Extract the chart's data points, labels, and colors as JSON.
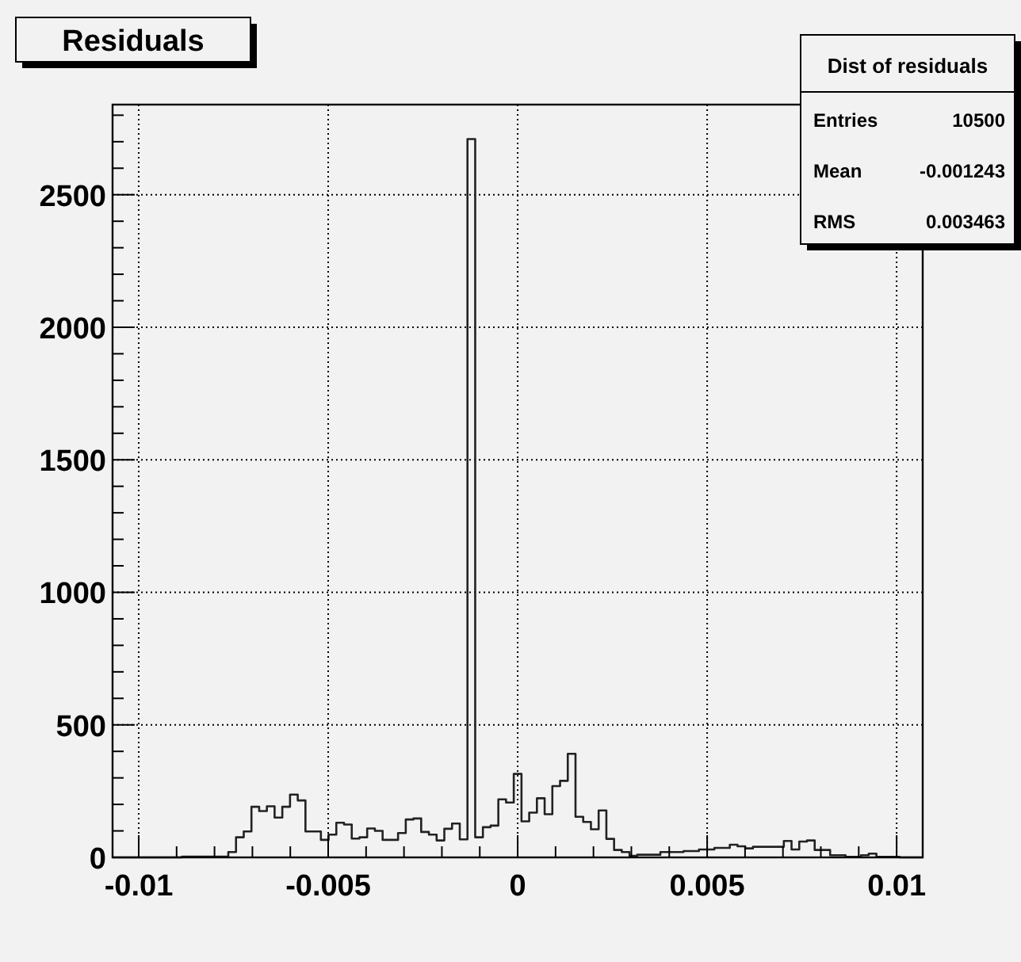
{
  "chart_data": {
    "type": "histogram",
    "title": "Residuals",
    "bins": [
      -0.01069,
      -0.0104864,
      -0.0102828,
      -0.0100792,
      -0.0098756,
      -0.009672,
      -0.0094684,
      -0.0092648,
      -0.0090612,
      -0.0088576,
      -0.008654,
      -0.0084504,
      -0.0082468,
      -0.0080432,
      -0.0078396,
      -0.007636,
      -0.0074324,
      -0.0072288,
      -0.0070252,
      -0.0068216,
      -0.006618,
      -0.0064144,
      -0.0062108,
      -0.0060072,
      -0.0058036,
      -0.0056,
      -0.0053964,
      -0.0051928,
      -0.0049892,
      -0.0047856,
      -0.004582,
      -0.0043784,
      -0.0041748,
      -0.0039712,
      -0.0037676,
      -0.003564,
      -0.0033604,
      -0.0031568,
      -0.0029532,
      -0.0027496,
      -0.002546,
      -0.0023424,
      -0.0021388,
      -0.0019352,
      -0.0017316,
      -0.001528,
      -0.0013244,
      -0.0011208,
      -0.0009172,
      -0.0007136,
      -0.00051,
      -0.0003064,
      -0.0001028,
      0.0001008,
      0.0003044,
      0.000508,
      0.0007116,
      0.0009152,
      0.0011188,
      0.0013224,
      0.001526,
      0.0017296,
      0.0019332,
      0.0021368,
      0.0023404,
      0.002544,
      0.0027476,
      0.0029512,
      0.0031548,
      0.0033584,
      0.003562,
      0.0037656,
      0.0039692,
      0.0041728,
      0.0043764,
      0.00458,
      0.0047836,
      0.0049872,
      0.0051908,
      0.0053944,
      0.005598,
      0.0058016,
      0.0060052,
      0.0062088,
      0.0064124,
      0.006616,
      0.0068196,
      0.0070232,
      0.0072268,
      0.0074304,
      0.007634,
      0.0078376,
      0.0080412,
      0.0082448,
      0.0084484,
      0.008652,
      0.0088556,
      0.0090592,
      0.0092628,
      0.0094664,
      0.00967,
      0.0098736,
      0.0100772,
      0.0102808,
      0.0104844,
      0.010688
    ],
    "values": [
      0,
      0,
      0,
      0,
      0,
      0,
      0,
      0,
      0,
      3,
      3,
      3,
      3,
      3,
      3,
      20,
      76,
      98,
      191,
      175,
      193,
      150,
      191,
      237,
      215,
      98,
      98,
      66,
      86,
      131,
      124,
      71,
      76,
      109,
      100,
      66,
      66,
      92,
      143,
      147,
      96,
      86,
      64,
      108,
      128,
      68,
      2710,
      76,
      114,
      120,
      219,
      207,
      315,
      136,
      169,
      223,
      163,
      269,
      289,
      391,
      153,
      134,
      106,
      177,
      70,
      28,
      20,
      6,
      10,
      10,
      10,
      20,
      20,
      20,
      24,
      24,
      30,
      30,
      36,
      36,
      48,
      42,
      34,
      40,
      40,
      40,
      40,
      62,
      30,
      60,
      64,
      28,
      28,
      8,
      8,
      2,
      2,
      8,
      14,
      2,
      2,
      2,
      0,
      0,
      0
    ],
    "color": "#222222",
    "xlim": [
      -0.01069,
      0.010688
    ],
    "xticks": [
      -0.01,
      {
        "value": -0.009,
        "label": null
      },
      {
        "value": -0.008,
        "label": null
      },
      {
        "value": -0.007,
        "label": null
      },
      {
        "value": -0.006,
        "label": null
      },
      -0.005,
      {
        "value": -0.004,
        "label": null
      },
      {
        "value": -0.003,
        "label": null
      },
      {
        "value": -0.002,
        "label": null
      },
      {
        "value": -0.001,
        "label": null
      },
      0,
      {
        "value": 0.001,
        "label": null
      },
      {
        "value": 0.002,
        "label": null
      },
      {
        "value": 0.003,
        "label": null
      },
      {
        "value": 0.004,
        "label": null
      },
      0.005,
      {
        "value": 0.006,
        "label": null
      },
      {
        "value": 0.007,
        "label": null
      },
      {
        "value": 0.008,
        "label": null
      },
      {
        "value": 0.009,
        "label": null
      },
      0.01
    ],
    "ylim": [
      0,
      2840
    ],
    "yticks": [
      0,
      {
        "value": 100,
        "label": null
      },
      {
        "value": 200,
        "label": null
      },
      {
        "value": 300,
        "label": null
      },
      {
        "value": 400,
        "label": null
      },
      500,
      {
        "value": 600,
        "label": null
      },
      {
        "value": 700,
        "label": null
      },
      {
        "value": 800,
        "label": null
      },
      {
        "value": 900,
        "label": null
      },
      1000,
      {
        "value": 1100,
        "label": null
      },
      {
        "value": 1200,
        "label": null
      },
      {
        "value": 1300,
        "label": null
      },
      {
        "value": 1400,
        "label": null
      },
      1500,
      {
        "value": 1600,
        "label": null
      },
      {
        "value": 1700,
        "label": null
      },
      {
        "value": 1800,
        "label": null
      },
      {
        "value": 1900,
        "label": null
      },
      2000,
      {
        "value": 2100,
        "label": null
      },
      {
        "value": 2200,
        "label": null
      },
      {
        "value": 2300,
        "label": null
      },
      {
        "value": 2400,
        "label": null
      },
      2500,
      {
        "value": 2600,
        "label": null
      },
      {
        "value": 2700,
        "label": null
      },
      {
        "value": 2800,
        "label": null
      }
    ],
    "grid": true,
    "annotations": [
      "Dist of residuals",
      "Entries 10500",
      "Mean -0.001243",
      "RMS 0.003463"
    ]
  }
}
